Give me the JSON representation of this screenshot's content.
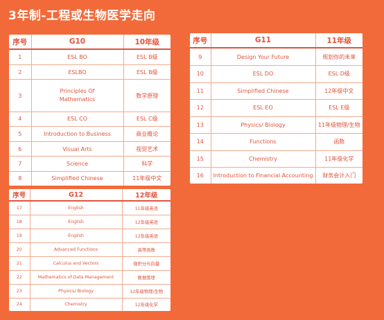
{
  "page": {
    "title": "3年制-工程或生物医学走向"
  },
  "colors": {
    "background": "#f26a3a",
    "accent": "#e2523a",
    "card": "#ffffff"
  },
  "tables": {
    "g10": {
      "headers": [
        "序号",
        "G10",
        "10年级"
      ],
      "rows": [
        {
          "num": "1",
          "en": [
            "ESL BO"
          ],
          "cn": "ESL B级"
        },
        {
          "num": "2",
          "en": [
            "ESLBO"
          ],
          "cn": "ESL B级"
        },
        {
          "num": "3",
          "en": [
            "Principles Of",
            "Mathematics"
          ],
          "cn": "数学原理"
        },
        {
          "num": "4",
          "en": [
            "ESL CO"
          ],
          "cn": "ESL C级"
        },
        {
          "num": "5",
          "en": [
            "Introduction to Business"
          ],
          "cn": "商业概论"
        },
        {
          "num": "6",
          "en": [
            "Visual Arts"
          ],
          "cn": "视觉艺术"
        },
        {
          "num": "7",
          "en": [
            "Science"
          ],
          "cn": "科学"
        },
        {
          "num": "8",
          "en": [
            "Simplified Chinese"
          ],
          "cn": "11年级中文"
        }
      ]
    },
    "g11": {
      "headers": [
        "序号",
        "G11",
        "11年级"
      ],
      "rows": [
        {
          "num": "9",
          "en": [
            "Design Your Future"
          ],
          "cn": "规划你的未来"
        },
        {
          "num": "10",
          "en": [
            "ESL DO"
          ],
          "cn": "ESL D级"
        },
        {
          "num": "11",
          "en": [
            "Simplified Chinese"
          ],
          "cn": "12年级中文"
        },
        {
          "num": "12",
          "en": [
            "ESL EO"
          ],
          "cn": "ESL E级"
        },
        {
          "num": "13",
          "en": [
            "Physics/ Biology"
          ],
          "cn": "11年级物理/生物"
        },
        {
          "num": "14",
          "en": [
            "Functions"
          ],
          "cn": "函数"
        },
        {
          "num": "15",
          "en": [
            "Chemistry"
          ],
          "cn": "11年级化学"
        },
        {
          "num": "16",
          "en": [
            "Introduction to Financial Accounting"
          ],
          "cn": "财务会计入门"
        }
      ]
    },
    "g12": {
      "headers": [
        "序号",
        "G12",
        "12年级"
      ],
      "rows": [
        {
          "num": "17",
          "en": [
            "English"
          ],
          "cn": "11年级英语"
        },
        {
          "num": "18",
          "en": [
            "English"
          ],
          "cn": "12年级英语"
        },
        {
          "num": "19",
          "en": [
            "English"
          ],
          "cn": "12年级英语"
        },
        {
          "num": "20",
          "en": [
            "Advanced Functions"
          ],
          "cn": "高等函数"
        },
        {
          "num": "21",
          "en": [
            "Calculus and Vectors"
          ],
          "cn": "微积分与向量"
        },
        {
          "num": "22",
          "en": [
            "Mathematics of Data Management"
          ],
          "cn": "数据管理"
        },
        {
          "num": "23",
          "en": [
            "Physics/ Biology"
          ],
          "cn": "12年级物理/生物"
        },
        {
          "num": "24",
          "en": [
            "Chemistry"
          ],
          "cn": "12年级化学"
        }
      ]
    }
  }
}
